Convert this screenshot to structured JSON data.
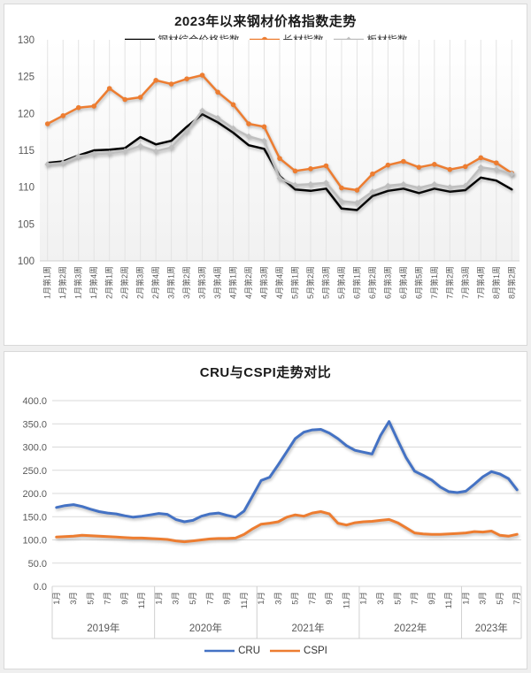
{
  "page": {
    "background": "#efefef",
    "panel_background": "#ffffff",
    "panel_border": "#d9d9d9",
    "gridline_color": "#e3e3e3",
    "axis_line_color": "#d0d0d0",
    "axis_text_color": "#595959"
  },
  "chart_data": [
    {
      "type": "line",
      "title": "2023年以来钢材价格指数走势",
      "legend_position": "top",
      "grid": "vertical",
      "ylim": [
        100,
        130
      ],
      "ytick_step": 5,
      "categories": [
        "1月第1周",
        "1月第2周",
        "1月第3周",
        "1月第4周",
        "2月第1周",
        "2月第2周",
        "2月第3周",
        "2月第4周",
        "3月第1周",
        "3月第2周",
        "3月第3周",
        "3月第4周",
        "4月第1周",
        "4月第2周",
        "4月第3周",
        "4月第4周",
        "5月第1周",
        "5月第2周",
        "5月第3周",
        "5月第4周",
        "6月第1周",
        "6月第2周",
        "6月第3周",
        "6月第4周",
        "6月第5周",
        "7月第1周",
        "7月第2周",
        "7月第3周",
        "7月第4周",
        "8月第1周",
        "8月第2周"
      ],
      "series": [
        {
          "name": "钢材综合价格指数",
          "color": "#000000",
          "marker": "none",
          "values": [
            113.3,
            113.5,
            114.3,
            115.0,
            115.1,
            115.3,
            116.8,
            115.8,
            116.3,
            118.2,
            119.9,
            118.8,
            117.4,
            115.7,
            115.2,
            111.5,
            109.7,
            109.5,
            109.8,
            107.1,
            106.9,
            108.8,
            109.5,
            109.8,
            109.2,
            109.8,
            109.4,
            109.6,
            111.3,
            110.9,
            109.7
          ]
        },
        {
          "name": "长材指数",
          "color": "#ED7D31",
          "marker": "circle",
          "values": [
            118.6,
            119.7,
            120.8,
            121.0,
            123.4,
            121.9,
            122.2,
            124.5,
            124.0,
            124.7,
            125.2,
            122.9,
            121.2,
            118.6,
            118.2,
            113.9,
            112.2,
            112.5,
            112.9,
            109.9,
            109.6,
            111.8,
            113.0,
            113.5,
            112.7,
            113.1,
            112.4,
            112.8,
            114.0,
            113.3,
            111.9
          ]
        },
        {
          "name": "板材指数",
          "color": "#BFBFBF",
          "marker": "diamond",
          "values": [
            113.1,
            113.3,
            114.2,
            114.5,
            114.6,
            114.9,
            115.6,
            114.9,
            115.4,
            117.6,
            120.4,
            119.4,
            118.0,
            116.9,
            116.3,
            111.2,
            110.3,
            110.4,
            110.6,
            108.1,
            107.9,
            109.4,
            110.2,
            110.4,
            109.9,
            110.4,
            110.0,
            110.2,
            112.7,
            112.4,
            111.8
          ]
        }
      ]
    },
    {
      "type": "line",
      "title": "CRU与CSPI走势对比",
      "legend_position": "bottom",
      "grid": "horizontal",
      "ylim": [
        0,
        400
      ],
      "ytick_step": 50,
      "ytick_format": "one_decimal",
      "x_groups": [
        {
          "year": "2019年",
          "n_months": 12,
          "tick_labels": [
            "1月",
            "3月",
            "5月",
            "7月",
            "9月",
            "11月"
          ]
        },
        {
          "year": "2020年",
          "n_months": 12,
          "tick_labels": [
            "1月",
            "3月",
            "5月",
            "7月",
            "9月",
            "11月"
          ]
        },
        {
          "year": "2021年",
          "n_months": 12,
          "tick_labels": [
            "1月",
            "3月",
            "5月",
            "7月",
            "9月",
            "11月"
          ]
        },
        {
          "year": "2022年",
          "n_months": 12,
          "tick_labels": [
            "1月",
            "3月",
            "5月",
            "7月",
            "9月",
            "11月"
          ]
        },
        {
          "year": "2023年",
          "n_months": 7,
          "tick_labels": [
            "1月",
            "3月",
            "5月",
            "7月"
          ]
        }
      ],
      "series": [
        {
          "name": "CRU",
          "color": "#4472C4",
          "marker": "none",
          "values": [
            170,
            174,
            176,
            172,
            166,
            161,
            158,
            156,
            152,
            149,
            151,
            154,
            157,
            155,
            144,
            139,
            142,
            151,
            156,
            158,
            153,
            149,
            162,
            195,
            228,
            235,
            262,
            290,
            318,
            332,
            337,
            338,
            330,
            318,
            303,
            293,
            289,
            285,
            325,
            355,
            315,
            277,
            248,
            239,
            229,
            214,
            204,
            202,
            205,
            220,
            236,
            247,
            242,
            232,
            208
          ]
        },
        {
          "name": "CSPI",
          "color": "#ED7D31",
          "marker": "none",
          "values": [
            106,
            107,
            108,
            110,
            109,
            108,
            107,
            106,
            105,
            104,
            104,
            103,
            102,
            101,
            98,
            96,
            98,
            100,
            102,
            103,
            103,
            104,
            112,
            124,
            134,
            136,
            139,
            149,
            154,
            151,
            158,
            161,
            156,
            136,
            132,
            137,
            139,
            140,
            142,
            144,
            137,
            126,
            115,
            113,
            112,
            112,
            113,
            114,
            115,
            118,
            117,
            119,
            110,
            108,
            112
          ]
        }
      ]
    }
  ]
}
